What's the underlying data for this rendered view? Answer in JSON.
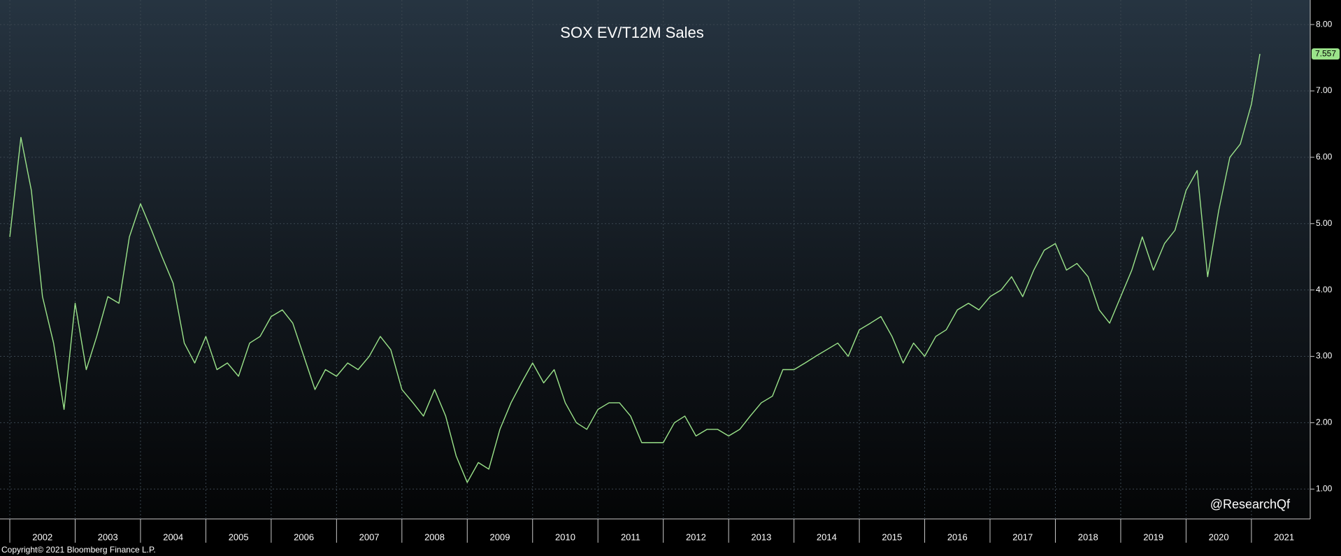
{
  "chart_data": {
    "type": "line",
    "title": "SOX EV/T12M Sales",
    "annotation": "@ResearchQf",
    "copyright": "Copyright© 2021 Bloomberg Finance L.P.",
    "grid": true,
    "xlim": [
      2001.85,
      2021.9
    ],
    "xticks": [
      2002,
      2003,
      2004,
      2005,
      2006,
      2007,
      2008,
      2009,
      2010,
      2011,
      2012,
      2013,
      2014,
      2015,
      2016,
      2017,
      2018,
      2019,
      2020,
      2021
    ],
    "ylim": [
      0.55,
      8.37
    ],
    "yticks": [
      {
        "value": 1,
        "label": "1.00"
      },
      {
        "value": 2,
        "label": "2.00"
      },
      {
        "value": 3,
        "label": "3.00"
      },
      {
        "value": 4,
        "label": "4.00"
      },
      {
        "value": 5,
        "label": "5.00"
      },
      {
        "value": 6,
        "label": "6.00"
      },
      {
        "value": 7,
        "label": "7.00"
      },
      {
        "value": 8,
        "label": "8.00"
      }
    ],
    "x": [
      2002.0,
      2002.17,
      2002.33,
      2002.5,
      2002.67,
      2002.83,
      2003.0,
      2003.17,
      2003.33,
      2003.5,
      2003.67,
      2003.83,
      2004.0,
      2004.17,
      2004.33,
      2004.5,
      2004.67,
      2004.83,
      2005.0,
      2005.17,
      2005.33,
      2005.5,
      2005.67,
      2005.83,
      2006.0,
      2006.17,
      2006.33,
      2006.5,
      2006.67,
      2006.83,
      2007.0,
      2007.17,
      2007.33,
      2007.5,
      2007.67,
      2007.83,
      2008.0,
      2008.17,
      2008.33,
      2008.5,
      2008.67,
      2008.83,
      2009.0,
      2009.17,
      2009.33,
      2009.5,
      2009.67,
      2009.83,
      2010.0,
      2010.17,
      2010.33,
      2010.5,
      2010.67,
      2010.83,
      2011.0,
      2011.17,
      2011.33,
      2011.5,
      2011.67,
      2011.83,
      2012.0,
      2012.17,
      2012.33,
      2012.5,
      2012.67,
      2012.83,
      2013.0,
      2013.17,
      2013.33,
      2013.5,
      2013.67,
      2013.83,
      2014.0,
      2014.17,
      2014.33,
      2014.5,
      2014.67,
      2014.83,
      2015.0,
      2015.17,
      2015.33,
      2015.5,
      2015.67,
      2015.83,
      2016.0,
      2016.17,
      2016.33,
      2016.5,
      2016.67,
      2016.83,
      2017.0,
      2017.17,
      2017.33,
      2017.5,
      2017.67,
      2017.83,
      2018.0,
      2018.17,
      2018.33,
      2018.5,
      2018.67,
      2018.83,
      2019.0,
      2019.17,
      2019.33,
      2019.5,
      2019.67,
      2019.83,
      2020.0,
      2020.17,
      2020.33,
      2020.5,
      2020.67,
      2020.83,
      2021.0,
      2021.13
    ],
    "series": [
      {
        "color": "#9be38a",
        "values": [
          4.8,
          6.3,
          5.5,
          3.9,
          3.2,
          2.2,
          3.8,
          2.8,
          3.3,
          3.9,
          3.8,
          4.8,
          5.3,
          4.9,
          4.5,
          4.1,
          3.2,
          2.9,
          3.3,
          2.8,
          2.9,
          2.7,
          3.2,
          3.3,
          3.6,
          3.7,
          3.5,
          3.0,
          2.5,
          2.8,
          2.7,
          2.9,
          2.8,
          3.0,
          3.3,
          3.1,
          2.5,
          2.3,
          2.1,
          2.5,
          2.1,
          1.5,
          1.1,
          1.4,
          1.3,
          1.9,
          2.3,
          2.6,
          2.9,
          2.6,
          2.8,
          2.3,
          2.0,
          1.9,
          2.2,
          2.3,
          2.3,
          2.1,
          1.7,
          1.7,
          1.7,
          2.0,
          2.1,
          1.8,
          1.9,
          1.9,
          1.8,
          1.9,
          2.1,
          2.3,
          2.4,
          2.8,
          2.8,
          2.9,
          3.0,
          3.1,
          3.2,
          3.0,
          3.4,
          3.5,
          3.6,
          3.3,
          2.9,
          3.2,
          3.0,
          3.3,
          3.4,
          3.7,
          3.8,
          3.7,
          3.9,
          4.0,
          4.2,
          3.9,
          4.3,
          4.6,
          4.7,
          4.3,
          4.4,
          4.2,
          3.7,
          3.5,
          3.9,
          4.3,
          4.8,
          4.3,
          4.7,
          4.9,
          5.5,
          5.8,
          4.2,
          5.2,
          6.0,
          6.2,
          6.8,
          7.557
        ],
        "value_labels": [
          null,
          null,
          null,
          null,
          null,
          null,
          null,
          null,
          null,
          null,
          null,
          null,
          null,
          null,
          null,
          null,
          null,
          null,
          null,
          null,
          null,
          null,
          null,
          null,
          null,
          null,
          null,
          null,
          null,
          null,
          null,
          null,
          null,
          null,
          null,
          null,
          null,
          null,
          null,
          null,
          null,
          null,
          null,
          null,
          null,
          null,
          null,
          null,
          null,
          null,
          null,
          null,
          null,
          null,
          null,
          null,
          null,
          null,
          null,
          null,
          null,
          null,
          null,
          null,
          null,
          null,
          null,
          null,
          null,
          null,
          null,
          null,
          null,
          null,
          null,
          null,
          null,
          null,
          null,
          null,
          null,
          null,
          null,
          null,
          null,
          null,
          null,
          null,
          null,
          null,
          null,
          null,
          null,
          null,
          null,
          null,
          null,
          null,
          null,
          null,
          null,
          null,
          null,
          null,
          null,
          null,
          null,
          null,
          null,
          null,
          null,
          null,
          null,
          null,
          null,
          "7.557"
        ]
      }
    ]
  }
}
